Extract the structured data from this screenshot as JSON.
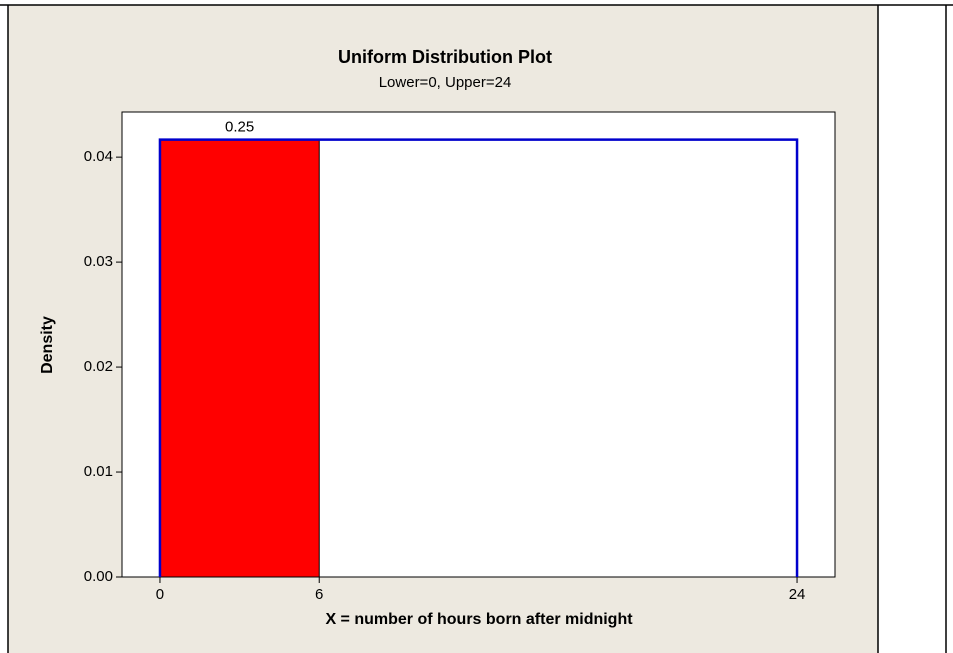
{
  "chart_data": {
    "type": "uniform",
    "title": "Uniform Distribution Plot",
    "subtitle": "Lower=0, Upper=24",
    "xlabel": "X = number of hours born after midnight",
    "ylabel": "Density",
    "lower": 0,
    "upper": 24,
    "density": 0.041667,
    "shade": [
      0,
      6
    ],
    "shaded_area": 0.25,
    "line_color": "#0000cc",
    "shade_color": "#ff0000",
    "xlim": [
      -1.43,
      25.43
    ],
    "xticks": [
      0,
      6,
      24
    ],
    "ylim": [
      0,
      0.0443
    ],
    "yticks": [
      {
        "value": 0,
        "label": "0.00"
      },
      0.01,
      0.02,
      0.03,
      0.04
    ]
  }
}
